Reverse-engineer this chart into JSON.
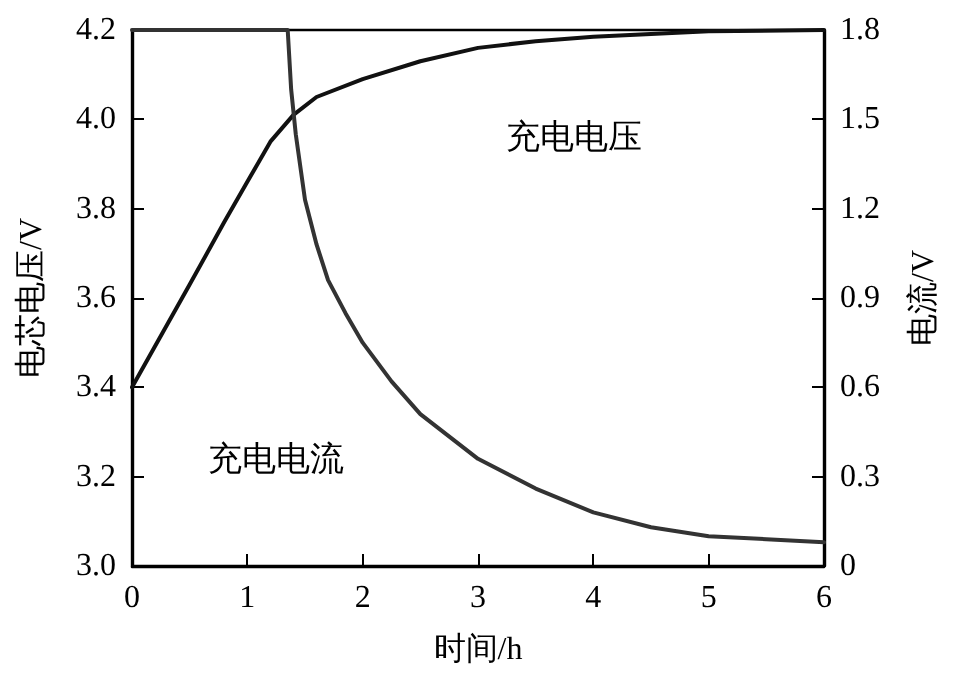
{
  "chart_data": {
    "type": "line",
    "xlabel": "时间/h",
    "ylabel": "电芯电压/V",
    "y2label": "电流/V",
    "xlim": [
      0,
      6
    ],
    "xticks": [
      0,
      1,
      2,
      3,
      4,
      5,
      6
    ],
    "ylim": [
      3.0,
      4.2
    ],
    "yticks": [
      {
        "value": 3,
        "label": "3.0"
      },
      3.2,
      3.4,
      3.6,
      3.8,
      {
        "value": 4,
        "label": "4.0"
      },
      4.2
    ],
    "y2lim": [
      0,
      1.8
    ],
    "y2ticks": [
      0,
      0.3,
      0.6,
      0.9,
      1.2,
      1.5,
      1.8
    ],
    "grid": false,
    "marker": "none",
    "line_style": "solid",
    "series": [
      {
        "color": "#111111",
        "x": [
          0,
          0.5,
          0.8,
          1.0,
          1.2,
          1.4,
          1.6,
          2,
          2.5,
          3,
          3.5,
          4,
          5,
          6
        ],
        "values": [
          3.4,
          3.63,
          3.77,
          3.86,
          3.95,
          4.01,
          4.05,
          4.09,
          4.13,
          4.16,
          4.175,
          4.185,
          4.197,
          4.2
        ]
      },
      {
        "color": "#333333",
        "axis": "y2",
        "x": [
          0,
          1.35,
          1.38,
          1.42,
          1.5,
          1.6,
          1.7,
          1.85,
          2,
          2.25,
          2.5,
          3,
          3.5,
          4,
          4.5,
          5,
          5.5,
          6
        ],
        "values": [
          1.8,
          1.8,
          1.6,
          1.45,
          1.23,
          1.08,
          0.96,
          0.85,
          0.75,
          0.62,
          0.51,
          0.36,
          0.26,
          0.18,
          0.13,
          0.1,
          0.09,
          0.08
        ]
      }
    ],
    "annotations": [
      "充电电压",
      "充电电流"
    ]
  }
}
